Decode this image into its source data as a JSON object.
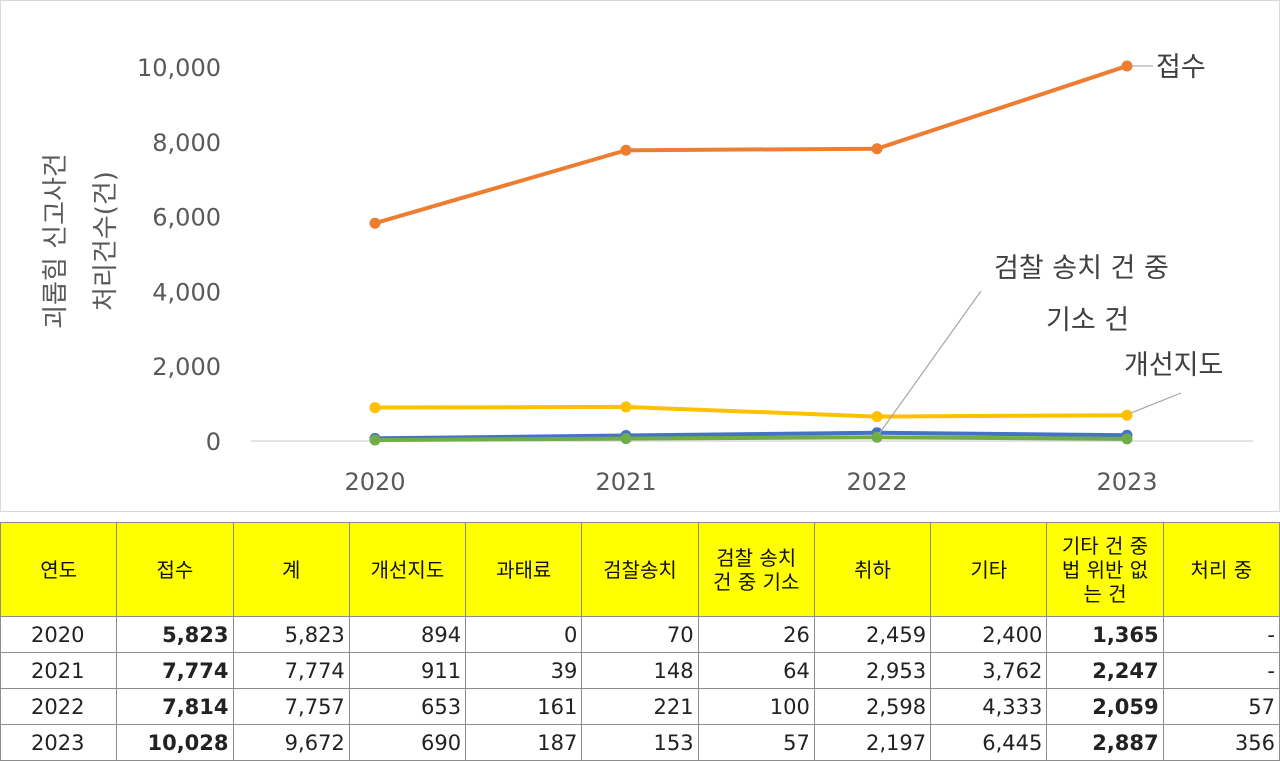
{
  "chart_data": {
    "type": "line",
    "x": [
      "2020",
      "2021",
      "2022",
      "2023"
    ],
    "ylabel_lines": [
      "괴롭힘 신고사건",
      "처리건수(건)"
    ],
    "yticks": [
      "0",
      "2,000",
      "4,000",
      "6,000",
      "8,000",
      "10,000"
    ],
    "ylim": [
      0,
      10000
    ],
    "grid": false,
    "series": [
      {
        "name": "접수",
        "values": [
          5823,
          7774,
          7814,
          10028
        ],
        "color": "#ed7d31"
      },
      {
        "name": "개선지도",
        "values": [
          894,
          911,
          653,
          690
        ],
        "color": "#ffc000"
      },
      {
        "name": "검찰송치",
        "values": [
          70,
          148,
          221,
          153
        ],
        "color": "#4472c4"
      },
      {
        "name": "검찰 송치 건 중 기소 건",
        "values": [
          26,
          64,
          100,
          57
        ],
        "color": "#70ad47"
      }
    ],
    "annotations": {
      "receipt": "접수",
      "indict_line1": "검찰 송치 건 중",
      "indict_line2": "기소 건",
      "guidance": "개선지도"
    }
  },
  "table": {
    "headers": [
      "연도",
      "접수",
      "계",
      "개선지도",
      "과태료",
      "검찰송치",
      "검찰 송치\n건 중 기소",
      "취하",
      "기타",
      "기타 건 중\n법 위반 없\n는 건",
      "처리 중"
    ],
    "rows": [
      [
        "2020",
        "5,823",
        "5,823",
        "894",
        "0",
        "70",
        "26",
        "2,459",
        "2,400",
        "1,365",
        "-"
      ],
      [
        "2021",
        "7,774",
        "7,774",
        "911",
        "39",
        "148",
        "64",
        "2,953",
        "3,762",
        "2,247",
        "-"
      ],
      [
        "2022",
        "7,814",
        "7,757",
        "653",
        "161",
        "221",
        "100",
        "2,598",
        "4,333",
        "2,059",
        "57"
      ],
      [
        "2023",
        "10,028",
        "9,672",
        "690",
        "187",
        "153",
        "57",
        "2,197",
        "6,445",
        "2,887",
        "356"
      ]
    ]
  }
}
